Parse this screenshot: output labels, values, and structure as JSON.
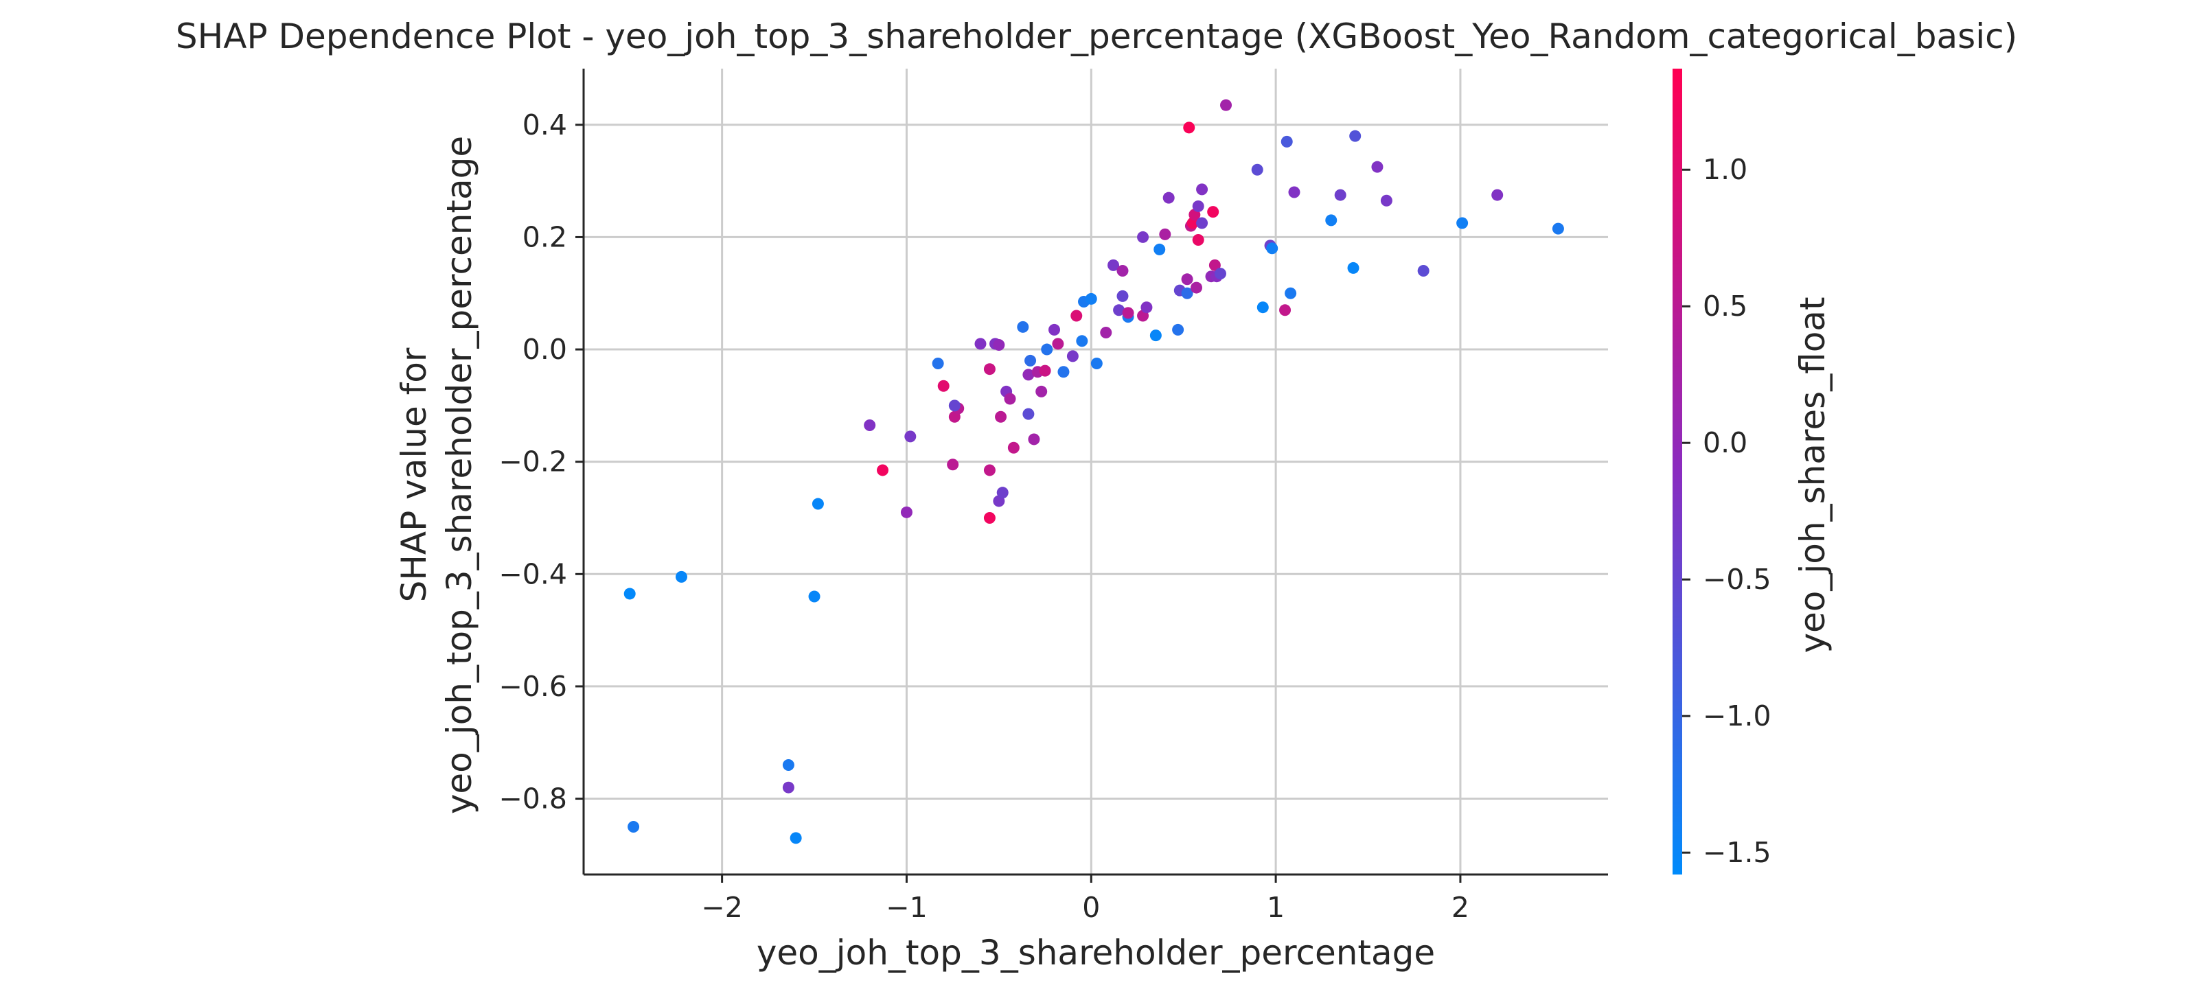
{
  "chart_data": {
    "type": "scatter",
    "title": "SHAP Dependence Plot - yeo_joh_top_3_shareholder_percentage (XGBoost_Yeo_Random_categorical_basic)",
    "xlabel": "yeo_joh_top_3_shareholder_percentage",
    "ylabel_line1": "SHAP value for",
    "ylabel_line2": "yeo_joh_top_3_shareholder_percentage",
    "xlim": [
      -2.75,
      2.8
    ],
    "ylim": [
      -0.935,
      0.5
    ],
    "xticks": [
      -2,
      -1,
      0,
      1,
      2
    ],
    "xtick_labels": [
      "−2",
      "−1",
      "0",
      "1",
      "2"
    ],
    "yticks": [
      0.4,
      0.2,
      0.0,
      -0.2,
      -0.4,
      -0.6,
      -0.8
    ],
    "ytick_labels": [
      "0.4",
      "0.2",
      "0.0",
      "−0.2",
      "−0.4",
      "−0.6",
      "−0.8"
    ],
    "grid": true,
    "colorbar": {
      "label": "yeo_joh_shares_float",
      "range": [
        -1.58,
        1.37
      ],
      "ticks": [
        1.0,
        0.5,
        0.0,
        -0.5,
        -1.0,
        -1.5
      ],
      "tick_labels": [
        "1.0",
        "0.5",
        "0.0",
        "−0.5",
        "−1.0",
        "−1.5"
      ],
      "color_low": "#008bfb",
      "color_mid": "#8a2cc0",
      "color_high": "#ff0052"
    },
    "points": [
      {
        "x": -2.5,
        "y": -0.435,
        "c": -1.55
      },
      {
        "x": -2.22,
        "y": -0.405,
        "c": -1.5
      },
      {
        "x": -2.48,
        "y": -0.85,
        "c": -1.3
      },
      {
        "x": -1.64,
        "y": -0.74,
        "c": -1.3
      },
      {
        "x": -1.64,
        "y": -0.78,
        "c": -0.3
      },
      {
        "x": -1.6,
        "y": -0.87,
        "c": -1.5
      },
      {
        "x": -1.48,
        "y": -0.275,
        "c": -1.5
      },
      {
        "x": -1.5,
        "y": -0.44,
        "c": -1.5
      },
      {
        "x": -1.13,
        "y": -0.215,
        "c": 1.2
      },
      {
        "x": -1.2,
        "y": -0.135,
        "c": -0.2
      },
      {
        "x": -1.0,
        "y": -0.29,
        "c": 0.0
      },
      {
        "x": -0.98,
        "y": -0.155,
        "c": -0.3
      },
      {
        "x": -0.83,
        "y": -0.025,
        "c": -1.2
      },
      {
        "x": -0.8,
        "y": -0.065,
        "c": 1.0
      },
      {
        "x": -0.75,
        "y": -0.205,
        "c": 0.5
      },
      {
        "x": -0.74,
        "y": -0.12,
        "c": 0.6
      },
      {
        "x": -0.72,
        "y": -0.105,
        "c": 0.5
      },
      {
        "x": -0.74,
        "y": -0.1,
        "c": -0.5
      },
      {
        "x": -0.6,
        "y": 0.01,
        "c": -0.2
      },
      {
        "x": -0.55,
        "y": -0.3,
        "c": 1.2
      },
      {
        "x": -0.55,
        "y": -0.215,
        "c": 0.6
      },
      {
        "x": -0.55,
        "y": -0.035,
        "c": 0.7
      },
      {
        "x": -0.52,
        "y": 0.01,
        "c": -0.2
      },
      {
        "x": -0.5,
        "y": 0.008,
        "c": 0.0
      },
      {
        "x": -0.5,
        "y": -0.27,
        "c": -0.3
      },
      {
        "x": -0.49,
        "y": -0.12,
        "c": 0.5
      },
      {
        "x": -0.48,
        "y": -0.255,
        "c": -0.4
      },
      {
        "x": -0.46,
        "y": -0.075,
        "c": -0.2
      },
      {
        "x": -0.44,
        "y": -0.088,
        "c": 0.3
      },
      {
        "x": -0.42,
        "y": -0.175,
        "c": 0.6
      },
      {
        "x": -0.37,
        "y": 0.04,
        "c": -1.2
      },
      {
        "x": -0.34,
        "y": -0.115,
        "c": -0.6
      },
      {
        "x": -0.34,
        "y": -0.045,
        "c": 0.0
      },
      {
        "x": -0.33,
        "y": -0.02,
        "c": -1.1
      },
      {
        "x": -0.31,
        "y": -0.16,
        "c": 0.2
      },
      {
        "x": -0.29,
        "y": -0.04,
        "c": 0.3
      },
      {
        "x": -0.27,
        "y": -0.075,
        "c": 0.2
      },
      {
        "x": -0.25,
        "y": -0.038,
        "c": 0.7
      },
      {
        "x": -0.24,
        "y": 0.0,
        "c": -1.2
      },
      {
        "x": -0.2,
        "y": 0.035,
        "c": -0.2
      },
      {
        "x": -0.18,
        "y": 0.01,
        "c": 0.5
      },
      {
        "x": -0.15,
        "y": -0.04,
        "c": -1.2
      },
      {
        "x": -0.1,
        "y": -0.012,
        "c": -0.3
      },
      {
        "x": -0.08,
        "y": 0.06,
        "c": 0.9
      },
      {
        "x": -0.05,
        "y": 0.015,
        "c": -1.3
      },
      {
        "x": -0.04,
        "y": 0.085,
        "c": -1.3
      },
      {
        "x": 0.0,
        "y": 0.09,
        "c": -1.4
      },
      {
        "x": 0.03,
        "y": -0.025,
        "c": -1.3
      },
      {
        "x": 0.08,
        "y": 0.03,
        "c": 0.2
      },
      {
        "x": 0.12,
        "y": 0.15,
        "c": -0.3
      },
      {
        "x": 0.15,
        "y": 0.07,
        "c": -0.4
      },
      {
        "x": 0.17,
        "y": 0.095,
        "c": -0.5
      },
      {
        "x": 0.17,
        "y": 0.14,
        "c": 0.2
      },
      {
        "x": 0.2,
        "y": 0.058,
        "c": -1.3
      },
      {
        "x": 0.2,
        "y": 0.065,
        "c": 0.5
      },
      {
        "x": 0.28,
        "y": 0.06,
        "c": 0.5
      },
      {
        "x": 0.28,
        "y": 0.2,
        "c": -0.3
      },
      {
        "x": 0.3,
        "y": 0.075,
        "c": -0.2
      },
      {
        "x": 0.35,
        "y": 0.025,
        "c": -1.5
      },
      {
        "x": 0.37,
        "y": 0.178,
        "c": -1.4
      },
      {
        "x": 0.4,
        "y": 0.205,
        "c": 0.3
      },
      {
        "x": 0.42,
        "y": 0.27,
        "c": -0.2
      },
      {
        "x": 0.47,
        "y": 0.035,
        "c": -1.2
      },
      {
        "x": 0.48,
        "y": 0.105,
        "c": -0.5
      },
      {
        "x": 0.52,
        "y": 0.125,
        "c": 0.2
      },
      {
        "x": 0.52,
        "y": 0.1,
        "c": -1.1
      },
      {
        "x": 0.53,
        "y": 0.395,
        "c": 1.3
      },
      {
        "x": 0.54,
        "y": 0.22,
        "c": 0.6
      },
      {
        "x": 0.55,
        "y": 0.225,
        "c": 1.2
      },
      {
        "x": 0.56,
        "y": 0.24,
        "c": 0.8
      },
      {
        "x": 0.57,
        "y": 0.11,
        "c": 0.3
      },
      {
        "x": 0.58,
        "y": 0.195,
        "c": 1.1
      },
      {
        "x": 0.58,
        "y": 0.255,
        "c": -0.3
      },
      {
        "x": 0.6,
        "y": 0.285,
        "c": -0.2
      },
      {
        "x": 0.6,
        "y": 0.225,
        "c": -0.4
      },
      {
        "x": 0.65,
        "y": 0.13,
        "c": 0.0
      },
      {
        "x": 0.66,
        "y": 0.245,
        "c": 1.2
      },
      {
        "x": 0.67,
        "y": 0.15,
        "c": 0.6
      },
      {
        "x": 0.68,
        "y": 0.13,
        "c": -0.1
      },
      {
        "x": 0.7,
        "y": 0.135,
        "c": -0.5
      },
      {
        "x": 0.73,
        "y": 0.435,
        "c": 0.2
      },
      {
        "x": 0.9,
        "y": 0.32,
        "c": -0.6
      },
      {
        "x": 0.93,
        "y": 0.075,
        "c": -1.5
      },
      {
        "x": 0.97,
        "y": 0.185,
        "c": -0.4
      },
      {
        "x": 0.98,
        "y": 0.18,
        "c": -1.4
      },
      {
        "x": 1.05,
        "y": 0.07,
        "c": 0.6
      },
      {
        "x": 1.06,
        "y": 0.37,
        "c": -0.8
      },
      {
        "x": 1.08,
        "y": 0.1,
        "c": -1.3
      },
      {
        "x": 1.1,
        "y": 0.28,
        "c": -0.2
      },
      {
        "x": 1.3,
        "y": 0.23,
        "c": -1.4
      },
      {
        "x": 1.35,
        "y": 0.275,
        "c": -0.4
      },
      {
        "x": 1.42,
        "y": 0.145,
        "c": -1.5
      },
      {
        "x": 1.43,
        "y": 0.38,
        "c": -0.7
      },
      {
        "x": 1.55,
        "y": 0.325,
        "c": -0.2
      },
      {
        "x": 1.6,
        "y": 0.265,
        "c": -0.3
      },
      {
        "x": 1.8,
        "y": 0.14,
        "c": -0.6
      },
      {
        "x": 2.01,
        "y": 0.225,
        "c": -1.4
      },
      {
        "x": 2.2,
        "y": 0.275,
        "c": -0.2
      },
      {
        "x": 2.53,
        "y": 0.215,
        "c": -1.3
      }
    ]
  }
}
